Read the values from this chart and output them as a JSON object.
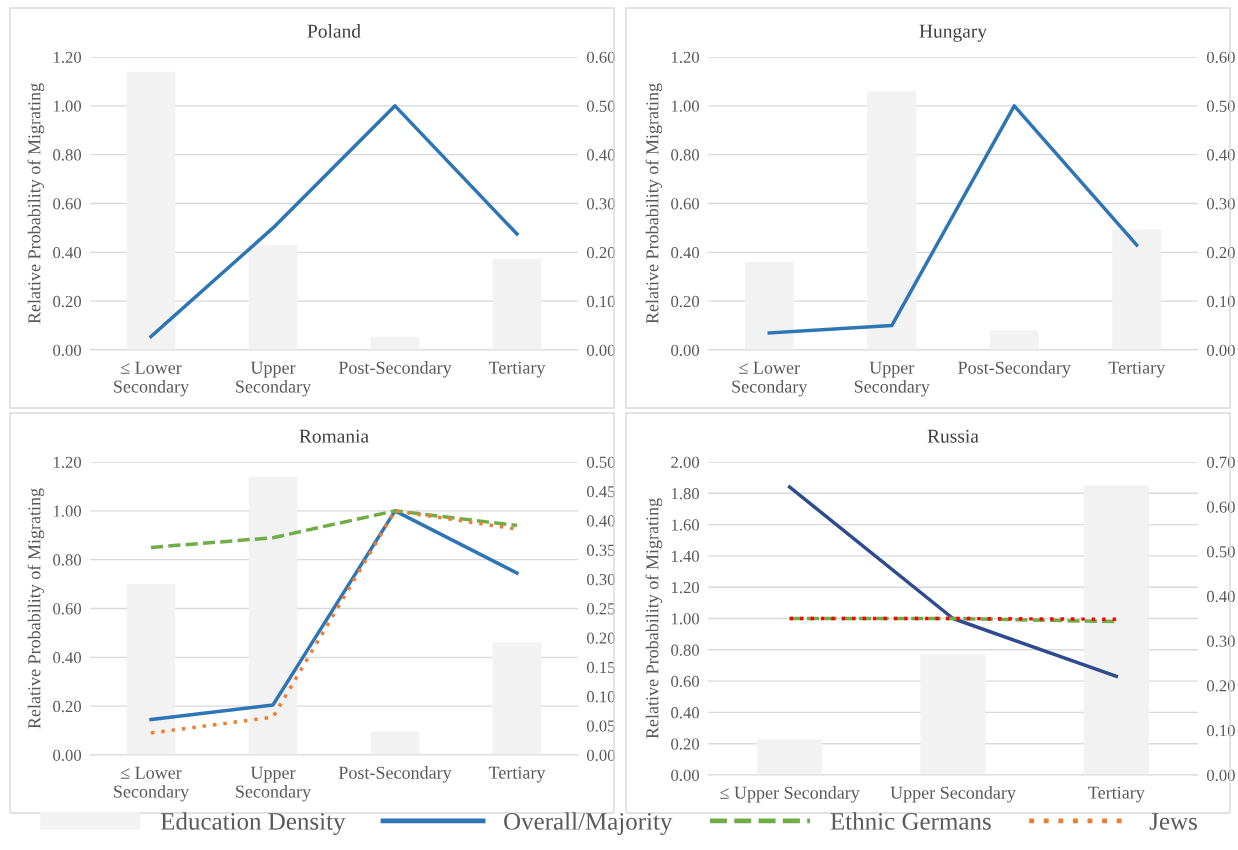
{
  "chart_data": [
    {
      "type": "bar",
      "title": "Poland",
      "ylabel": "Relative Probability of Migrating",
      "categories": [
        "≤ Lower\nSecondary",
        "Upper\nSecondary",
        "Post-Secondary",
        "Tertiary"
      ],
      "ylim": [
        0,
        1.2
      ],
      "yticks": [
        {
          "value": 0,
          "label": "0.00"
        },
        {
          "value": 0.2,
          "label": "0.20"
        },
        {
          "value": 0.4,
          "label": "0.40"
        },
        {
          "value": 0.6,
          "label": "0.60"
        },
        {
          "value": 0.8,
          "label": "0.80"
        },
        {
          "value": 1.0,
          "label": "1.00"
        },
        {
          "value": 1.2,
          "label": "1.20"
        }
      ],
      "y2lim": [
        0,
        0.6
      ],
      "y2ticks": [
        {
          "value": 0,
          "label": "0.00"
        },
        {
          "value": 0.1,
          "label": "0.10"
        },
        {
          "value": 0.2,
          "label": "0.20"
        },
        {
          "value": 0.3,
          "label": "0.30"
        },
        {
          "value": 0.4,
          "label": "0.40"
        },
        {
          "value": 0.5,
          "label": "0.50"
        },
        {
          "value": 0.6,
          "label": "0.60"
        }
      ],
      "grid": "y",
      "series": [
        {
          "axis": "y2",
          "color": "#f2f2f2",
          "values": [
            0.57,
            0.215,
            0.027,
            0.187
          ]
        },
        {
          "type": "line",
          "line_style": "solid",
          "color": "#2e75b6",
          "values": [
            0.055,
            0.5,
            1.0,
            0.475
          ]
        }
      ]
    },
    {
      "type": "bar",
      "title": "Hungary",
      "ylabel": "Relative Probability of Migrating",
      "categories": [
        "≤ Lower\nSecondary",
        "Upper\nSecondary",
        "Post-Secondary",
        "Tertiary"
      ],
      "ylim": [
        0,
        1.2
      ],
      "yticks": [
        {
          "value": 0,
          "label": "0.00"
        },
        {
          "value": 0.2,
          "label": "0.20"
        },
        {
          "value": 0.4,
          "label": "0.40"
        },
        {
          "value": 0.6,
          "label": "0.60"
        },
        {
          "value": 0.8,
          "label": "0.80"
        },
        {
          "value": 1.0,
          "label": "1.00"
        },
        {
          "value": 1.2,
          "label": "1.20"
        }
      ],
      "y2lim": [
        0,
        0.6
      ],
      "y2ticks": [
        {
          "value": 0,
          "label": "0.00"
        },
        {
          "value": 0.1,
          "label": "0.10"
        },
        {
          "value": 0.2,
          "label": "0.20"
        },
        {
          "value": 0.3,
          "label": "0.30"
        },
        {
          "value": 0.4,
          "label": "0.40"
        },
        {
          "value": 0.5,
          "label": "0.50"
        },
        {
          "value": 0.6,
          "label": "0.60"
        }
      ],
      "grid": "y",
      "series": [
        {
          "axis": "y2",
          "color": "#f2f2f2",
          "values": [
            0.18,
            0.53,
            0.04,
            0.247
          ]
        },
        {
          "type": "line",
          "line_style": "solid",
          "color": "#2e75b6",
          "values": [
            0.07,
            0.1,
            1.0,
            0.43
          ]
        }
      ]
    },
    {
      "type": "bar",
      "title": "Romania",
      "ylabel": "Relative Probability of Migrating",
      "categories": [
        "≤ Lower\nSecondary",
        "Upper\nSecondary",
        "Post-Secondary",
        "Tertiary"
      ],
      "ylim": [
        0,
        1.2
      ],
      "yticks": [
        {
          "value": 0,
          "label": "0.00"
        },
        {
          "value": 0.2,
          "label": "0.20"
        },
        {
          "value": 0.4,
          "label": "0.40"
        },
        {
          "value": 0.6,
          "label": "0.60"
        },
        {
          "value": 0.8,
          "label": "0.80"
        },
        {
          "value": 1.0,
          "label": "1.00"
        },
        {
          "value": 1.2,
          "label": "1.20"
        }
      ],
      "y2lim": [
        0,
        0.5
      ],
      "y2ticks": [
        {
          "value": 0,
          "label": "0.00"
        },
        {
          "value": 0.05,
          "label": "0.05"
        },
        {
          "value": 0.1,
          "label": "0.10"
        },
        {
          "value": 0.15,
          "label": "0.15"
        },
        {
          "value": 0.2,
          "label": "0.20"
        },
        {
          "value": 0.25,
          "label": "0.25"
        },
        {
          "value": 0.3,
          "label": "0.30"
        },
        {
          "value": 0.35,
          "label": "0.35"
        },
        {
          "value": 0.4,
          "label": "0.40"
        },
        {
          "value": 0.45,
          "label": "0.45"
        },
        {
          "value": 0.5,
          "label": "0.50"
        }
      ],
      "grid": "y",
      "legend": "bottom",
      "series": [
        {
          "name": "Education Density",
          "axis": "y2",
          "color": "#f2f2f2",
          "values": [
            0.292,
            0.475,
            0.04,
            0.192
          ]
        },
        {
          "name": "Overall/Majority",
          "type": "line",
          "line_style": "solid",
          "color": "#2e75b6",
          "values": [
            0.145,
            0.205,
            1.0,
            0.745
          ]
        },
        {
          "name": "Ethnic Germans",
          "type": "line",
          "line_style": "dashed",
          "color": "#70ad47",
          "values": [
            0.85,
            0.89,
            1.0,
            0.94
          ]
        },
        {
          "name": "Jews",
          "type": "line",
          "line_style": "dotted",
          "color": "#ed7d31",
          "values": [
            0.09,
            0.155,
            1.0,
            0.925
          ]
        }
      ]
    },
    {
      "type": "bar",
      "title": "Russia",
      "ylabel": "Relative Probability of Migrating",
      "categories": [
        "≤ Upper Secondary",
        "Upper Secondary",
        "Tertiary"
      ],
      "ylim": [
        0,
        2.0
      ],
      "yticks": [
        {
          "value": 0,
          "label": "0.00"
        },
        {
          "value": 0.2,
          "label": "0.20"
        },
        {
          "value": 0.4,
          "label": "0.40"
        },
        {
          "value": 0.6,
          "label": "0.60"
        },
        {
          "value": 0.8,
          "label": "0.80"
        },
        {
          "value": 1.0,
          "label": "1.00"
        },
        {
          "value": 1.2,
          "label": "1.20"
        },
        {
          "value": 1.4,
          "label": "1.40"
        },
        {
          "value": 1.6,
          "label": "1.60"
        },
        {
          "value": 1.8,
          "label": "1.80"
        },
        {
          "value": 2.0,
          "label": "2.00"
        }
      ],
      "y2lim": [
        0,
        0.7
      ],
      "y2ticks": [
        {
          "value": 0,
          "label": "0.00"
        },
        {
          "value": 0.1,
          "label": "0.10"
        },
        {
          "value": 0.2,
          "label": "0.20"
        },
        {
          "value": 0.3,
          "label": "0.30"
        },
        {
          "value": 0.4,
          "label": "0.40"
        },
        {
          "value": 0.5,
          "label": "0.50"
        },
        {
          "value": 0.6,
          "label": "0.60"
        },
        {
          "value": 0.7,
          "label": "0.70"
        }
      ],
      "grid": "y",
      "series": [
        {
          "axis": "y2",
          "color": "#f2f2f2",
          "values": [
            0.08,
            0.27,
            0.648
          ]
        },
        {
          "type": "line",
          "line_style": "solid",
          "color": "#2f4b8f",
          "values": [
            1.84,
            1.0,
            0.63
          ]
        },
        {
          "type": "line",
          "line_style": "dashed",
          "color": "#70ad47",
          "values": [
            1.0,
            1.0,
            0.98
          ]
        },
        {
          "type": "line",
          "line_style": "dotted",
          "color": "#ff0000",
          "values": [
            1.0,
            1.0,
            0.995
          ]
        }
      ]
    }
  ]
}
